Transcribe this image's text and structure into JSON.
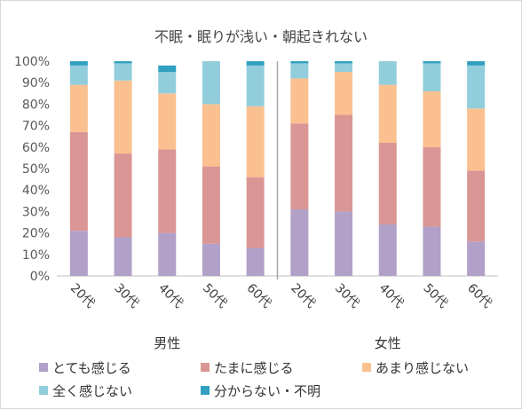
{
  "chart_data": {
    "type": "bar",
    "stacked": "percent",
    "title": "不眠・眠りが浅い・朝起きれない",
    "ylim": [
      0,
      100
    ],
    "yticks": [
      "0%",
      "10%",
      "20%",
      "30%",
      "40%",
      "50%",
      "60%",
      "70%",
      "80%",
      "90%",
      "100%"
    ],
    "grid": false,
    "legend_position": "bottom",
    "groups": [
      {
        "label": "男性",
        "categories": [
          "20代",
          "30代",
          "40代",
          "50代",
          "60代"
        ]
      },
      {
        "label": "女性",
        "categories": [
          "20代",
          "30代",
          "40代",
          "50代",
          "60代"
        ]
      }
    ],
    "series": [
      {
        "name": "とても感じる",
        "color": "#b1a0c7",
        "values": [
          21,
          18,
          20,
          15,
          13,
          31,
          30,
          24,
          23,
          16
        ]
      },
      {
        "name": "たまに感じる",
        "color": "#da9694",
        "values": [
          46,
          39,
          39,
          36,
          33,
          40,
          45,
          38,
          37,
          33
        ]
      },
      {
        "name": "あまり感じない",
        "color": "#fac090",
        "values": [
          22,
          34,
          26,
          29,
          33,
          21,
          20,
          27,
          26,
          29
        ]
      },
      {
        "name": "全く感じない",
        "color": "#92cddc",
        "values": [
          9,
          8,
          10,
          20,
          19,
          7,
          4,
          11,
          13,
          20
        ]
      },
      {
        "name": "分からない・不明",
        "color": "#31a0c0",
        "values": [
          2,
          1,
          3,
          0,
          2,
          1,
          1,
          0,
          1,
          2
        ]
      }
    ]
  }
}
